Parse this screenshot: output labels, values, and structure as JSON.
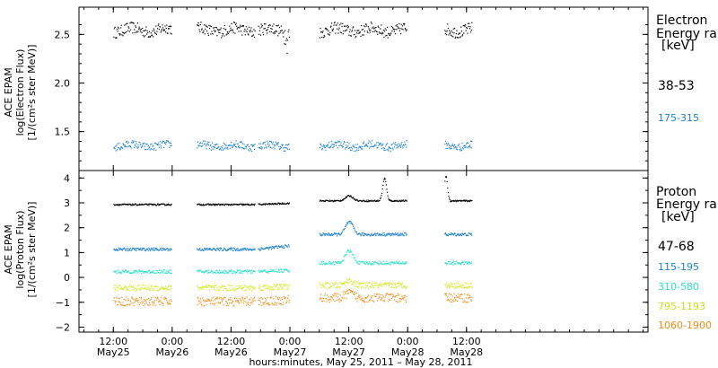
{
  "chart_data": [
    {
      "type": "scatter",
      "ylabel_lines": [
        "ACE EPAM",
        "log(Electron Flux)",
        "[1/(cm²s ster MeV)]"
      ],
      "yticks": [
        "2.5",
        "2.0",
        "1.5"
      ],
      "ylim": [
        1.1,
        2.78
      ],
      "legend_title": [
        "Electron",
        "Energy ran",
        "[keV]"
      ],
      "series": [
        {
          "name": "38-53",
          "color": "#000000",
          "value": 2.55,
          "spread": 0.06
        },
        {
          "name": "175-315",
          "color": "#1a7fd4",
          "value": 1.36,
          "spread": 0.04
        }
      ]
    },
    {
      "type": "scatter",
      "ylabel_lines": [
        "ACE EPAM",
        "log(Proton Flux)",
        "[1/(cm²s ster MeV)]"
      ],
      "yticks": [
        "4",
        "3",
        "2",
        "1",
        "0",
        "−1",
        "−2"
      ],
      "ytick_values": [
        4,
        3,
        2,
        1,
        0,
        -1,
        -2
      ],
      "ylim": [
        -2.2,
        4.3
      ],
      "legend_title": [
        "Proton",
        "Energy ran",
        "[keV]"
      ],
      "series": [
        {
          "name": "47-68",
          "color": "#000000",
          "before": 2.95,
          "after": 3.1,
          "spread": 0.03
        },
        {
          "name": "115-195",
          "color": "#1a7fd4",
          "before": 1.15,
          "after": 1.75,
          "spread": 0.06
        },
        {
          "name": "310-580",
          "color": "#2ee0c8",
          "before": 0.25,
          "after": 0.6,
          "spread": 0.07
        },
        {
          "name": "795-1193",
          "color": "#d2e81e",
          "before": -0.4,
          "after": -0.3,
          "spread": 0.12
        },
        {
          "name": "1060-1900",
          "color": "#f08a10",
          "before": -0.95,
          "after": -0.8,
          "spread": 0.18
        }
      ]
    }
  ],
  "x_axis": {
    "ticks": [
      {
        "time": "12:00",
        "date": "May25"
      },
      {
        "time": "0:00",
        "date": "May26"
      },
      {
        "time": "12:00",
        "date": "May26"
      },
      {
        "time": "0:00",
        "date": "May27"
      },
      {
        "time": "12:00",
        "date": "May27"
      },
      {
        "time": "0:00",
        "date": "May28"
      },
      {
        "time": "12:00",
        "date": "May28"
      }
    ],
    "xlim_hours": [
      5,
      121
    ],
    "label": "hours:minutes, May 25, 2011 – May 28, 2011"
  },
  "data_segments_hours": [
    [
      12,
      23.8
    ],
    [
      29,
      40.8
    ],
    [
      41.5,
      47.8
    ],
    [
      54,
      71.8
    ],
    [
      79.5,
      85
    ]
  ]
}
